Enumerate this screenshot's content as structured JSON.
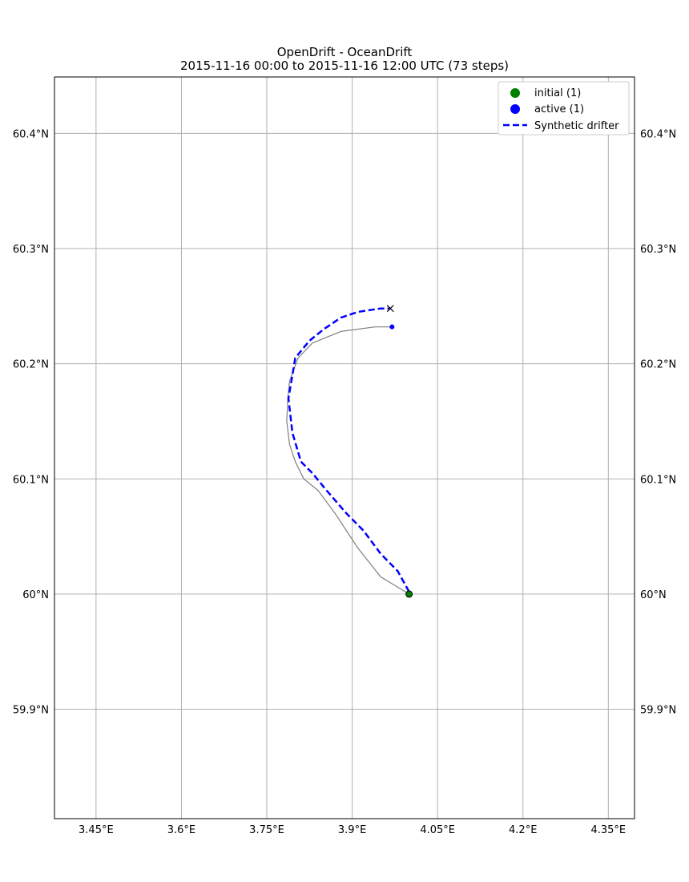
{
  "chart_data": {
    "type": "line",
    "title": "OpenDrift - OceanDrift",
    "subtitle": "2015-11-16 00:00 to 2015-11-16 12:00 UTC (73 steps)",
    "xlabel": "",
    "ylabel": "",
    "xlim": [
      3.377,
      4.396
    ],
    "ylim": [
      59.805,
      60.449
    ],
    "grid": true,
    "legend_position": "top-right",
    "x_ticks": [
      {
        "value": 3.45,
        "label": "3.45°E"
      },
      {
        "value": 3.6,
        "label": "3.6°E"
      },
      {
        "value": 3.75,
        "label": "3.75°E"
      },
      {
        "value": 3.9,
        "label": "3.9°E"
      },
      {
        "value": 4.05,
        "label": "4.05°E"
      },
      {
        "value": 4.2,
        "label": "4.2°E"
      },
      {
        "value": 4.35,
        "label": "4.35°E"
      }
    ],
    "y_ticks": [
      {
        "value": 59.9,
        "label": "59.9°N"
      },
      {
        "value": 60.0,
        "label": "60°N"
      },
      {
        "value": 60.1,
        "label": "60.1°N"
      },
      {
        "value": 60.2,
        "label": "60.2°N"
      },
      {
        "value": 60.3,
        "label": "60.3°N"
      },
      {
        "value": 60.4,
        "label": "60.4°N"
      }
    ],
    "legend": [
      {
        "label": "initial (1)",
        "kind": "marker",
        "color": "#008000"
      },
      {
        "label": "active (1)",
        "kind": "marker",
        "color": "#0000ff"
      },
      {
        "label": "Synthetic drifter",
        "kind": "dashed-line",
        "color": "#0000ff"
      }
    ],
    "series": [
      {
        "role": "trajectory",
        "color": "#808080",
        "points": [
          [
            4.0,
            60.0
          ],
          [
            3.95,
            60.015
          ],
          [
            3.91,
            60.04
          ],
          [
            3.87,
            60.07
          ],
          [
            3.84,
            60.09
          ],
          [
            3.815,
            60.1
          ],
          [
            3.8,
            60.115
          ],
          [
            3.79,
            60.13
          ],
          [
            3.785,
            60.15
          ],
          [
            3.787,
            60.17
          ],
          [
            3.79,
            60.185
          ],
          [
            3.805,
            60.205
          ],
          [
            3.83,
            60.218
          ],
          [
            3.88,
            60.228
          ],
          [
            3.94,
            60.232
          ],
          [
            3.97,
            60.232
          ]
        ]
      },
      {
        "name": "Synthetic drifter",
        "role": "drifter",
        "color": "#0000ff",
        "points": [
          [
            4.0,
            60.002
          ],
          [
            3.98,
            60.02
          ],
          [
            3.95,
            60.035
          ],
          [
            3.92,
            60.055
          ],
          [
            3.89,
            60.07
          ],
          [
            3.855,
            60.09
          ],
          [
            3.83,
            60.105
          ],
          [
            3.81,
            60.115
          ],
          [
            3.795,
            60.14
          ],
          [
            3.788,
            60.17
          ],
          [
            3.795,
            60.19
          ],
          [
            3.8,
            60.205
          ],
          [
            3.825,
            60.22
          ],
          [
            3.85,
            60.23
          ],
          [
            3.88,
            60.24
          ],
          [
            3.91,
            60.245
          ],
          [
            3.95,
            60.248
          ],
          [
            3.967,
            60.248
          ]
        ]
      }
    ],
    "markers": [
      {
        "role": "initial",
        "x": 4.0,
        "y": 60.0,
        "color": "#008000"
      },
      {
        "role": "active",
        "x": 3.97,
        "y": 60.232,
        "color": "#0000ff"
      },
      {
        "role": "drifter-end",
        "x": 3.967,
        "y": 60.248,
        "color": "#000000"
      }
    ]
  }
}
